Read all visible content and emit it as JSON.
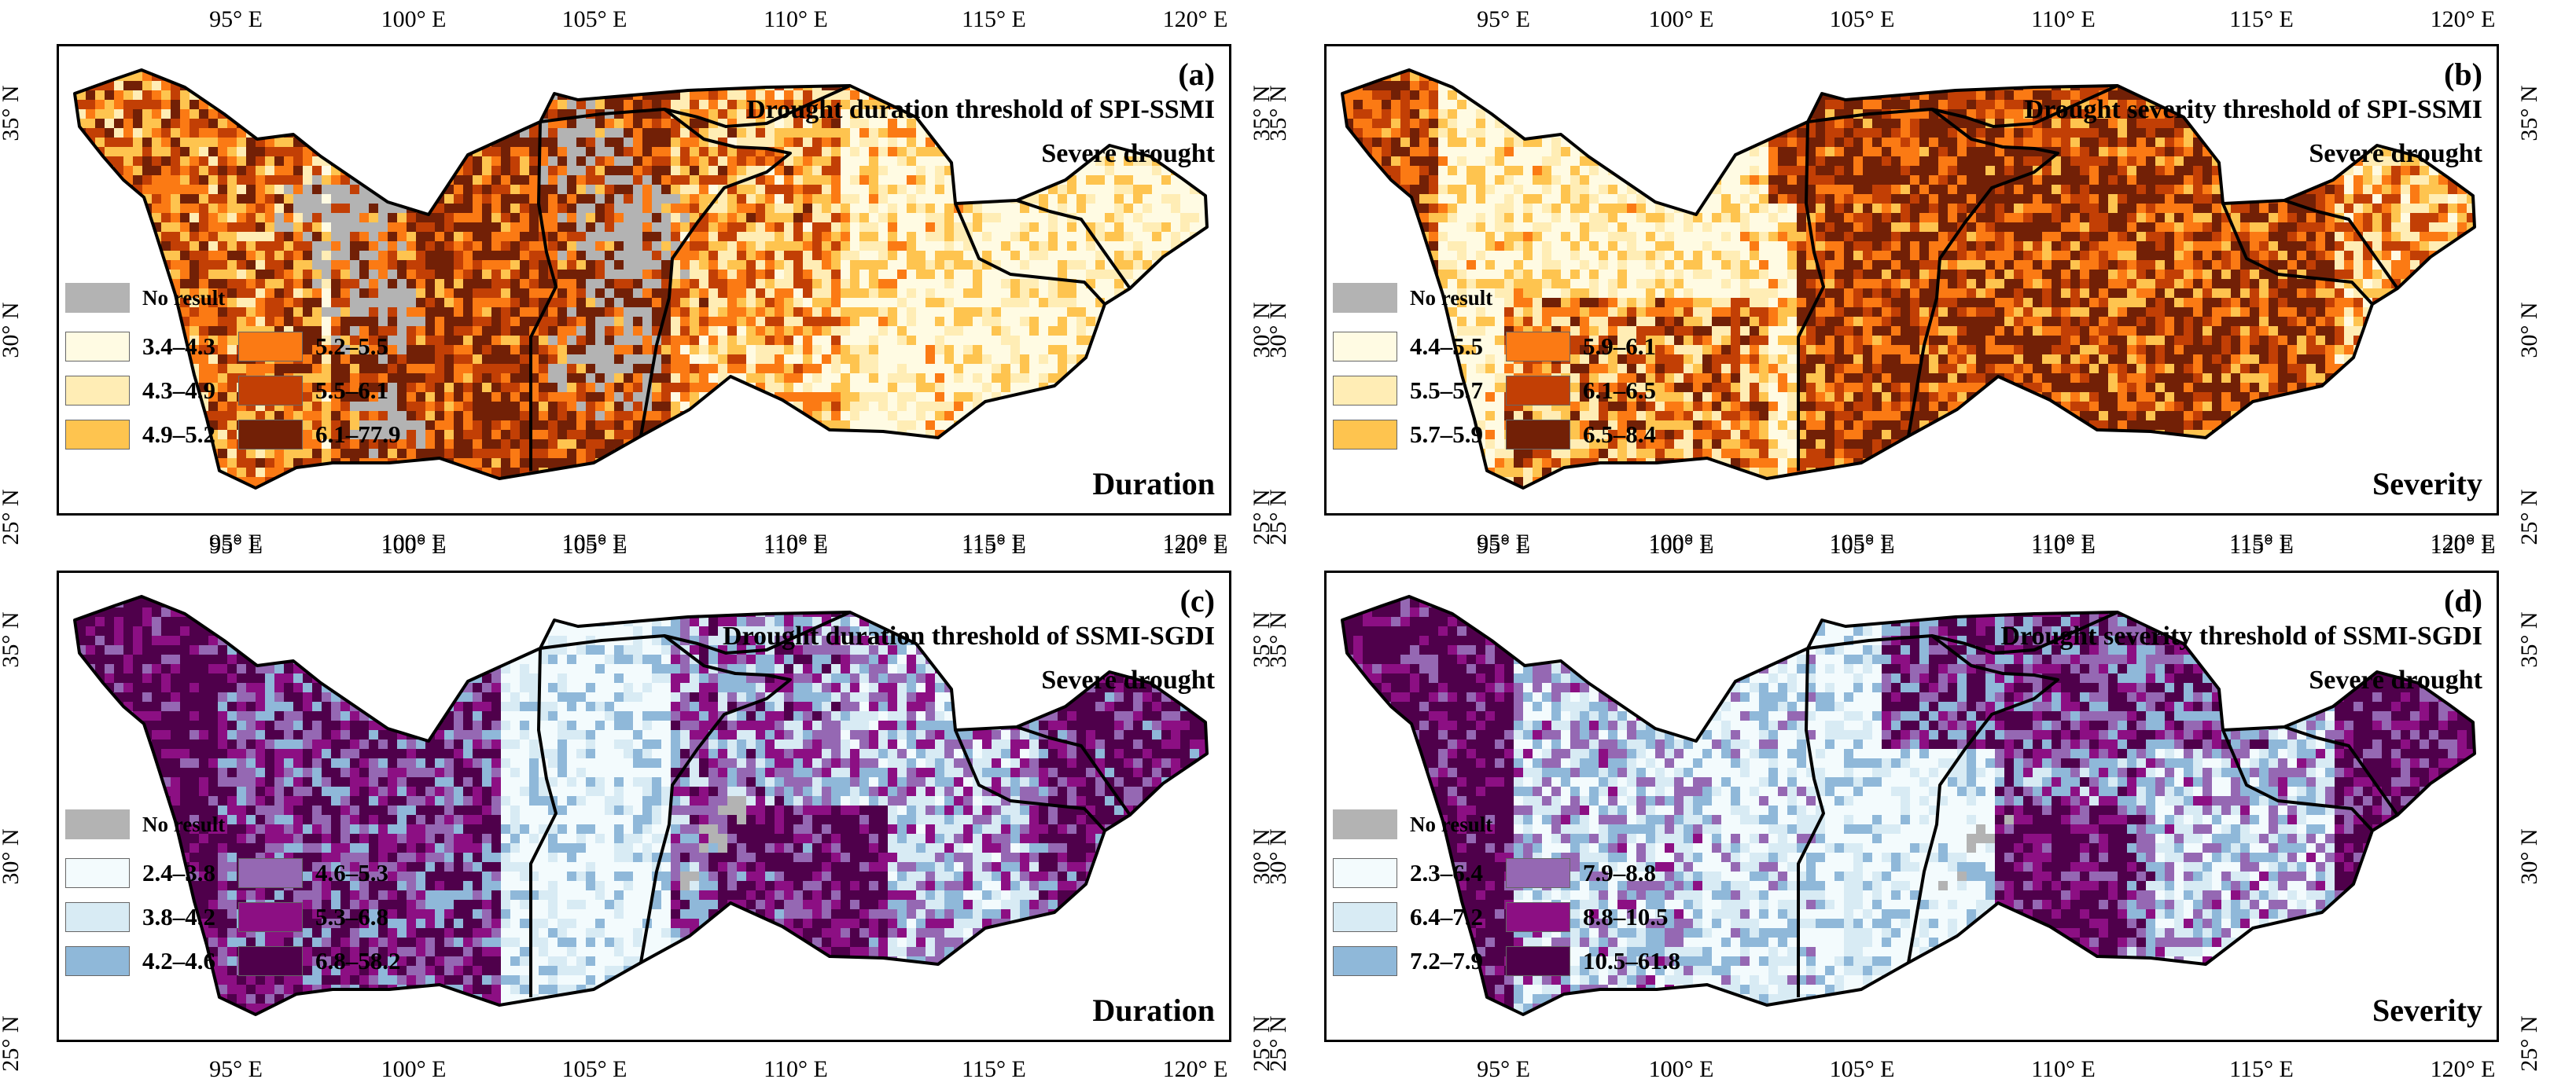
{
  "axes": {
    "lon_labels": [
      "95° E",
      "100° E",
      "105° E",
      "110° E",
      "115° E",
      "120° E"
    ],
    "lat_labels": [
      "35° N",
      "30° N",
      "25° N"
    ]
  },
  "no_result_label": "No result",
  "no_result_color": "#b3b3b3",
  "panels": [
    {
      "letter": "(a)",
      "title": "Drought duration threshold of SPI-SSMI",
      "subtitle": "Severe drought",
      "variable": "Duration",
      "palette": [
        "#fffbe3",
        "#ffedb5",
        "#fec44f",
        "#fb7a14",
        "#c23f05",
        "#722006"
      ],
      "legend": [
        "3.4–4.3",
        "4.3–4.9",
        "4.9–5.2",
        "5.2–5.5",
        "5.5–6.1",
        "6.1–77.9"
      ]
    },
    {
      "letter": "(b)",
      "title": "Drought severity threshold of SPI-SSMI",
      "subtitle": "Severe drought",
      "variable": "Severity",
      "palette": [
        "#fffbe3",
        "#ffedb5",
        "#fec44f",
        "#fb7a14",
        "#c23f05",
        "#722006"
      ],
      "legend": [
        "4.4–5.5",
        "5.5–5.7",
        "5.7–5.9",
        "5.9–6.1",
        "6.1–6.5",
        "6.5–8.4"
      ]
    },
    {
      "letter": "(c)",
      "title": "Drought duration threshold of SSMI-SGDI",
      "subtitle": "Severe drought",
      "variable": "Duration",
      "palette": [
        "#f3fbfd",
        "#d8ebf4",
        "#8fb8d9",
        "#9568b3",
        "#8c0f83",
        "#4f004b"
      ],
      "legend": [
        "2.4–3.8",
        "3.8–4.2",
        "4.2–4.6",
        "4.6–5.3",
        "5.3–6.8",
        "6.8–58.2"
      ]
    },
    {
      "letter": "(d)",
      "title": "Drought severity threshold of SSMI-SGDI",
      "subtitle": "Severe drought",
      "variable": "Severity",
      "palette": [
        "#f3fbfd",
        "#d8ebf4",
        "#8fb8d9",
        "#9568b3",
        "#8c0f83",
        "#4f004b"
      ],
      "legend": [
        "2.3–6.4",
        "6.4–7.2",
        "7.2–7.9",
        "7.9–8.8",
        "8.8–10.5",
        "10.5–61.8"
      ]
    }
  ]
}
